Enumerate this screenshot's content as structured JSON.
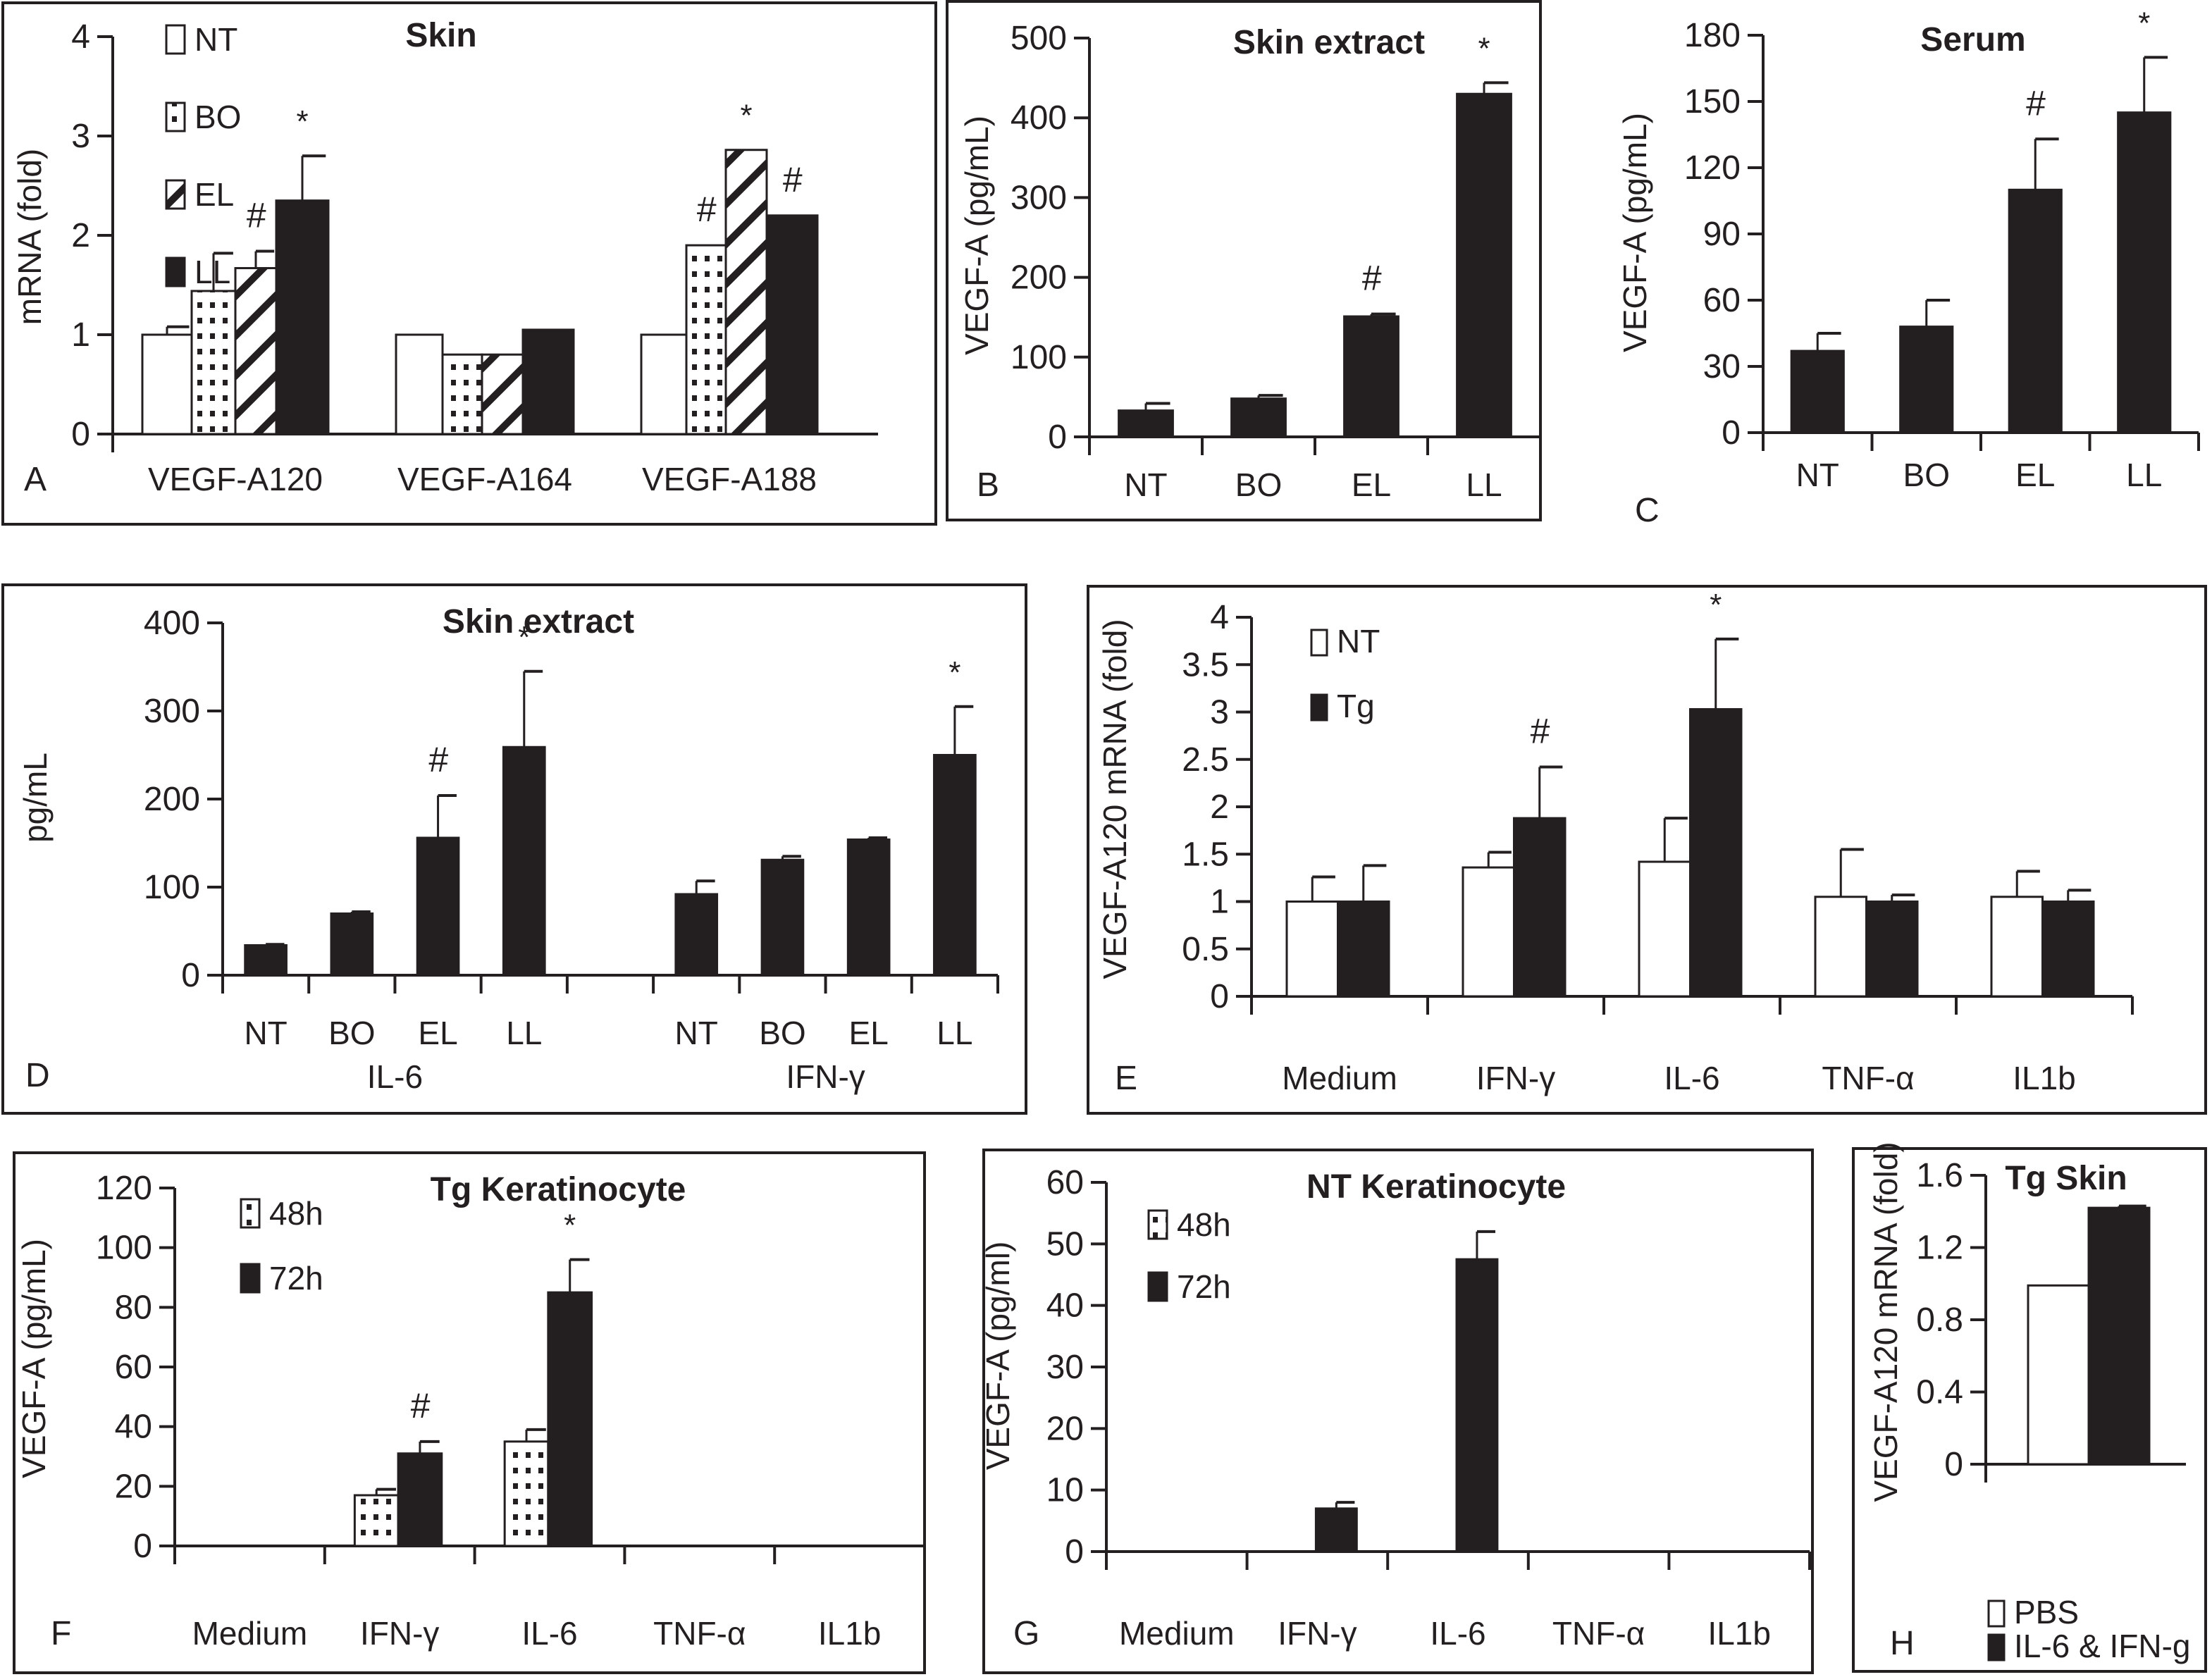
{
  "figure": {
    "panels": [
      "A",
      "B",
      "C",
      "D",
      "E",
      "F",
      "G",
      "H"
    ]
  },
  "chart_data": [
    {
      "id": "A",
      "panel_letter": "A",
      "type": "bar",
      "title": "Skin",
      "xlabel": "",
      "ylabel": "mRNA (fold)",
      "ylim": [
        0,
        4
      ],
      "yticks": [
        "0",
        "1",
        "2",
        "3",
        "4"
      ],
      "categories": [
        "VEGF-A120",
        "VEGF-A164",
        "VEGF-A188"
      ],
      "legend": {
        "position": "top-left",
        "entries": [
          "NT",
          "BO",
          "EL",
          "LL"
        ]
      },
      "series": [
        {
          "name": "NT",
          "pattern": "open",
          "values": [
            1.0,
            1.0,
            1.0
          ],
          "errors": [
            0.08,
            0,
            0
          ]
        },
        {
          "name": "BO",
          "pattern": "dots",
          "values": [
            1.44,
            0.8,
            1.9
          ],
          "errors": [
            0.38,
            0,
            0
          ]
        },
        {
          "name": "EL",
          "pattern": "stripes",
          "values": [
            1.67,
            0.8,
            2.86
          ],
          "errors": [
            0.17,
            0,
            0
          ]
        },
        {
          "name": "LL",
          "pattern": "solid",
          "values": [
            2.35,
            1.05,
            2.2
          ],
          "errors": [
            0.45,
            0,
            0
          ]
        }
      ],
      "annotations": [
        {
          "category": "VEGF-A120",
          "series": "EL",
          "text": "#"
        },
        {
          "category": "VEGF-A120",
          "series": "LL",
          "text": "*"
        },
        {
          "category": "VEGF-A188",
          "series": "BO",
          "text": "#"
        },
        {
          "category": "VEGF-A188",
          "series": "EL",
          "text": "*"
        },
        {
          "category": "VEGF-A188",
          "series": "LL",
          "text": "#"
        }
      ]
    },
    {
      "id": "B",
      "panel_letter": "B",
      "type": "bar",
      "title": "Skin extract",
      "ylabel": "VEGF-A (pg/mL)",
      "ylim": [
        0,
        500
      ],
      "yticks": [
        "0",
        "100",
        "200",
        "300",
        "400",
        "500"
      ],
      "categories": [
        "NT",
        "BO",
        "EL",
        "LL"
      ],
      "series": [
        {
          "name": "VEGF-A",
          "pattern": "solid",
          "values": [
            33,
            48,
            151,
            430
          ],
          "errors": [
            9,
            4,
            3,
            14
          ]
        }
      ],
      "annotations": [
        {
          "category": "EL",
          "series": "VEGF-A",
          "text": "#"
        },
        {
          "category": "LL",
          "series": "VEGF-A",
          "text": "*"
        }
      ]
    },
    {
      "id": "C",
      "panel_letter": "C",
      "type": "bar",
      "title": "Serum",
      "ylabel": "VEGF-A (pg/mL)",
      "ylim": [
        0,
        180
      ],
      "yticks": [
        "0",
        "30",
        "60",
        "90",
        "120",
        "150",
        "180"
      ],
      "categories": [
        "NT",
        "BO",
        "EL",
        "LL"
      ],
      "series": [
        {
          "name": "VEGF-A",
          "pattern": "solid",
          "values": [
            37,
            48,
            110,
            145
          ],
          "errors": [
            8,
            12,
            23,
            25
          ]
        }
      ],
      "annotations": [
        {
          "category": "EL",
          "series": "VEGF-A",
          "text": "#"
        },
        {
          "category": "LL",
          "series": "VEGF-A",
          "text": "*"
        }
      ]
    },
    {
      "id": "D",
      "panel_letter": "D",
      "type": "bar",
      "title": "Skin extract",
      "ylabel": "pg/mL",
      "ylim": [
        0,
        400
      ],
      "yticks": [
        "0",
        "100",
        "200",
        "300",
        "400"
      ],
      "categories": [
        "NT",
        "BO",
        "EL",
        "LL",
        "",
        "NT",
        "BO",
        "EL",
        "LL"
      ],
      "groups": [
        {
          "label": "IL-6",
          "categories": [
            "NT",
            "BO",
            "EL",
            "LL"
          ]
        },
        {
          "label": "IFN-γ",
          "categories": [
            "NT",
            "BO",
            "EL",
            "LL"
          ]
        }
      ],
      "series": [
        {
          "name": "pg/mL",
          "pattern": "solid",
          "values": [
            34,
            70,
            156,
            259,
            null,
            92,
            131,
            154,
            250
          ],
          "errors": [
            1,
            2,
            48,
            86,
            null,
            15,
            4,
            2,
            55
          ]
        }
      ],
      "annotations": [
        {
          "index": 2,
          "text": "#"
        },
        {
          "index": 3,
          "text": "*"
        },
        {
          "index": 8,
          "text": "*"
        }
      ]
    },
    {
      "id": "E",
      "panel_letter": "E",
      "type": "bar",
      "title": "",
      "ylabel": "VEGF-A120 mRNA (fold)",
      "ylim": [
        0,
        4
      ],
      "yticks": [
        "0",
        "0.5",
        "1",
        "1.5",
        "2",
        "2.5",
        "3",
        "3.5",
        "4"
      ],
      "categories": [
        "Medium",
        "IFN-γ",
        "IL-6",
        "TNF-α",
        "IL1b"
      ],
      "legend": {
        "position": "top-left",
        "entries": [
          "NT",
          "Tg"
        ]
      },
      "series": [
        {
          "name": "NT",
          "pattern": "open",
          "values": [
            1.0,
            1.36,
            1.42,
            1.05,
            1.05
          ],
          "errors": [
            0.26,
            0.16,
            0.46,
            0.5,
            0.27
          ]
        },
        {
          "name": "Tg",
          "pattern": "solid",
          "values": [
            1.0,
            1.88,
            3.03,
            1.0,
            1.0
          ],
          "errors": [
            0.38,
            0.54,
            0.74,
            0.07,
            0.12
          ]
        }
      ],
      "annotations": [
        {
          "category": "IFN-γ",
          "series": "Tg",
          "text": "#"
        },
        {
          "category": "IL-6",
          "series": "Tg",
          "text": "*"
        }
      ]
    },
    {
      "id": "F",
      "panel_letter": "F",
      "type": "bar",
      "title": "Tg Keratinocyte",
      "ylabel": "VEGF-A (pg/mL)",
      "ylim": [
        0,
        120
      ],
      "yticks": [
        "0",
        "20",
        "40",
        "60",
        "80",
        "100",
        "120"
      ],
      "categories": [
        "Medium",
        "IFN-γ",
        "IL-6",
        "TNF-α",
        "IL1b"
      ],
      "legend": {
        "position": "top-left",
        "entries": [
          "48h",
          "72h"
        ]
      },
      "series": [
        {
          "name": "48h",
          "pattern": "dots",
          "values": [
            0,
            17,
            35,
            0,
            0
          ],
          "errors": [
            0,
            2,
            4,
            0,
            0
          ]
        },
        {
          "name": "72h",
          "pattern": "solid",
          "values": [
            0,
            31,
            85,
            0,
            0
          ],
          "errors": [
            0,
            4,
            11,
            0,
            0
          ]
        }
      ],
      "annotations": [
        {
          "category": "IFN-γ",
          "series": "72h",
          "text": "#"
        },
        {
          "category": "IL-6",
          "series": "72h",
          "text": "*"
        }
      ]
    },
    {
      "id": "G",
      "panel_letter": "G",
      "type": "bar",
      "title": "NT Keratinocyte",
      "ylabel": "VEGF-A (pg/ml)",
      "ylim": [
        0,
        60
      ],
      "yticks": [
        "0",
        "10",
        "20",
        "30",
        "40",
        "50",
        "60"
      ],
      "categories": [
        "Medium",
        "IFN-γ",
        "IL-6",
        "TNF-α",
        "IL1b"
      ],
      "legend": {
        "position": "top-left",
        "entries": [
          "48h",
          "72h"
        ]
      },
      "series": [
        {
          "name": "48h",
          "pattern": "dots",
          "values": [
            0,
            0,
            0,
            0,
            0
          ],
          "errors": [
            0,
            0,
            0,
            0,
            0
          ]
        },
        {
          "name": "72h",
          "pattern": "solid",
          "values": [
            0,
            7,
            47.5,
            0,
            0
          ],
          "errors": [
            0,
            1,
            4.5,
            0,
            0
          ]
        }
      ],
      "annotations": []
    },
    {
      "id": "H",
      "panel_letter": "H",
      "type": "bar",
      "title": "Tg Skin",
      "ylabel": "VEGF-A120 mRNA (fold)",
      "ylim": [
        0,
        1.6
      ],
      "yticks": [
        "0",
        "0.4",
        "0.8",
        "1.2",
        "1.6"
      ],
      "categories": [
        ""
      ],
      "legend": {
        "position": "bottom",
        "entries": [
          "PBS",
          "IL-6 & IFN-g"
        ]
      },
      "series": [
        {
          "name": "PBS",
          "pattern": "open",
          "values": [
            0.99
          ],
          "errors": [
            0
          ]
        },
        {
          "name": "IL-6 & IFN-g",
          "pattern": "solid",
          "values": [
            1.42
          ],
          "errors": [
            0.01
          ]
        }
      ],
      "annotations": []
    }
  ]
}
